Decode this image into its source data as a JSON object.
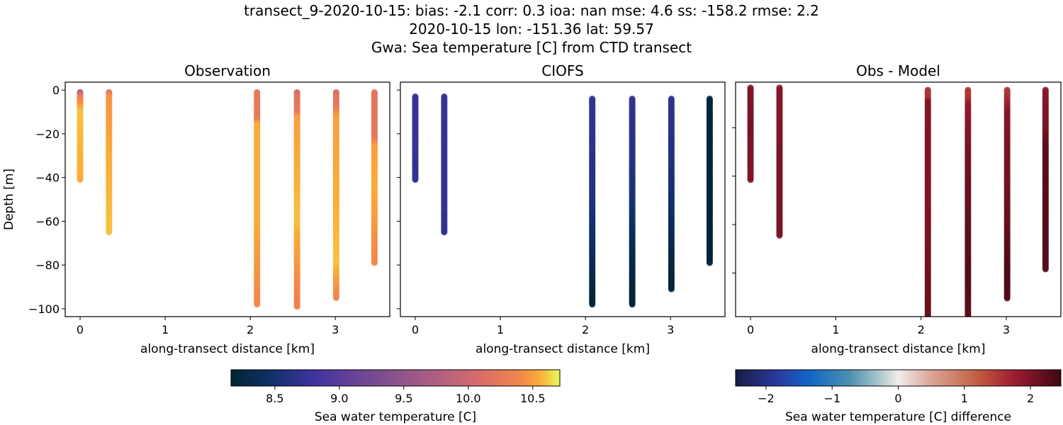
{
  "title_lines": [
    "transect_9-2020-10-15: bias: -2.1  corr: 0.3  ioa: nan  mse: 4.6  ss: -158.2  rmse: 2.2",
    "2020-10-15 lon: -151.36 lat: 59.57",
    "Gwa: Sea temperature [C] from CTD transect"
  ],
  "chart_data": [
    {
      "type": "scatter",
      "title": "Observation",
      "xlabel": "along-transect distance [km]",
      "ylabel": "Depth [m]",
      "xlim": [
        -0.175,
        3.64
      ],
      "ylim": [
        3.6,
        -103.6
      ],
      "xticks": [
        0,
        1,
        2,
        3
      ],
      "yticks": [
        0,
        -20,
        -40,
        -60,
        -80,
        -100
      ],
      "ytick_labels_shown": true,
      "colormap": "thermal",
      "profiles": [
        {
          "x": 0.0,
          "depth": [
            -1,
            -41
          ],
          "values": [
            [
              -1,
              9.6
            ],
            [
              -3,
              10.3
            ],
            [
              -10,
              10.6
            ],
            [
              -41,
              10.55
            ]
          ]
        },
        {
          "x": 0.34,
          "depth": [
            -1,
            -65
          ],
          "values": [
            [
              -1,
              10.1
            ],
            [
              -3,
              10.45
            ],
            [
              -30,
              10.55
            ],
            [
              -65,
              10.6
            ]
          ]
        },
        {
          "x": 2.08,
          "depth": [
            -1,
            -98
          ],
          "values": [
            [
              -1,
              10.25
            ],
            [
              -13,
              10.25
            ],
            [
              -16,
              10.55
            ],
            [
              -60,
              10.55
            ],
            [
              -98,
              10.4
            ]
          ]
        },
        {
          "x": 2.55,
          "depth": [
            -1,
            -99
          ],
          "values": [
            [
              -1,
              10.0
            ],
            [
              -3,
              10.2
            ],
            [
              -10,
              10.25
            ],
            [
              -13,
              10.5
            ],
            [
              -60,
              10.6
            ],
            [
              -99,
              10.35
            ]
          ]
        },
        {
          "x": 3.01,
          "depth": [
            -1,
            -95
          ],
          "values": [
            [
              -1,
              10.05
            ],
            [
              -3,
              10.2
            ],
            [
              -8,
              10.25
            ],
            [
              -12,
              10.5
            ],
            [
              -80,
              10.6
            ],
            [
              -95,
              10.4
            ]
          ]
        },
        {
          "x": 3.46,
          "depth": [
            -1,
            -79
          ],
          "values": [
            [
              -1,
              10.2
            ],
            [
              -22,
              10.25
            ],
            [
              -26,
              10.5
            ],
            [
              -45,
              10.55
            ],
            [
              -79,
              10.4
            ]
          ]
        }
      ]
    },
    {
      "type": "scatter",
      "title": "CIOFS",
      "xlabel": "along-transect distance [km]",
      "xlim": [
        -0.175,
        3.64
      ],
      "ylim": [
        3.6,
        -103.6
      ],
      "xticks": [
        0,
        1,
        2,
        3
      ],
      "yticks": [
        0,
        -20,
        -40,
        -60,
        -80,
        -100
      ],
      "ytick_labels_shown": false,
      "colormap": "thermal",
      "profiles": [
        {
          "x": 0.0,
          "depth": [
            -3,
            -41
          ],
          "values": [
            [
              -3,
              8.75
            ],
            [
              -41,
              8.72
            ]
          ]
        },
        {
          "x": 0.34,
          "depth": [
            -3,
            -65
          ],
          "values": [
            [
              -3,
              8.75
            ],
            [
              -65,
              8.7
            ]
          ]
        },
        {
          "x": 2.08,
          "depth": [
            -4,
            -98
          ],
          "values": [
            [
              -4,
              8.72
            ],
            [
              -50,
              8.6
            ],
            [
              -75,
              8.4
            ],
            [
              -98,
              8.2
            ]
          ]
        },
        {
          "x": 2.55,
          "depth": [
            -4,
            -98
          ],
          "values": [
            [
              -4,
              8.72
            ],
            [
              -50,
              8.55
            ],
            [
              -75,
              8.3
            ],
            [
              -98,
              8.18
            ]
          ]
        },
        {
          "x": 3.01,
          "depth": [
            -4,
            -91
          ],
          "values": [
            [
              -4,
              8.72
            ],
            [
              -50,
              8.5
            ],
            [
              -75,
              8.28
            ],
            [
              -91,
              8.2
            ]
          ]
        },
        {
          "x": 3.46,
          "depth": [
            -4,
            -79
          ],
          "values": [
            [
              -4,
              8.22
            ],
            [
              -79,
              8.18
            ]
          ]
        }
      ]
    },
    {
      "type": "scatter",
      "title": "Obs - Model",
      "xlabel": "along-transect distance [km]",
      "xlim": [
        -0.175,
        3.64
      ],
      "ylim": [
        -1.2,
        -98
      ],
      "xticks": [
        0,
        1,
        2,
        3
      ],
      "yticks": [
        -20,
        -40,
        -60,
        -80
      ],
      "ytick_labels_shown": false,
      "colormap": "balance",
      "profiles": [
        {
          "x": 0.0,
          "depth": [
            -3.5,
            -41.8
          ],
          "values": [
            [
              -3.5,
              1.95
            ],
            [
              -20,
              2.05
            ],
            [
              -41.8,
              1.95
            ]
          ]
        },
        {
          "x": 0.34,
          "depth": [
            -3.5,
            -64.6
          ],
          "values": [
            [
              -3.5,
              1.9
            ],
            [
              -30,
              2.0
            ],
            [
              -64.6,
              2.0
            ]
          ]
        },
        {
          "x": 2.08,
          "depth": [
            -4.4,
            -98
          ],
          "values": [
            [
              -4.4,
              1.55
            ],
            [
              -8,
              1.55
            ],
            [
              -10,
              1.95
            ],
            [
              -60,
              2.0
            ],
            [
              -98,
              2.15
            ]
          ]
        },
        {
          "x": 2.55,
          "depth": [
            -4.4,
            -98
          ],
          "values": [
            [
              -4.4,
              1.5
            ],
            [
              -8,
              1.55
            ],
            [
              -12,
              1.85
            ],
            [
              -30,
              2.05
            ],
            [
              -80,
              2.3
            ],
            [
              -98,
              2.25
            ]
          ]
        },
        {
          "x": 3.01,
          "depth": [
            -4.4,
            -90.6
          ],
          "values": [
            [
              -4.4,
              1.5
            ],
            [
              -8,
              1.6
            ],
            [
              -15,
              1.95
            ],
            [
              -50,
              2.1
            ],
            [
              -80,
              2.35
            ],
            [
              -90.6,
              2.3
            ]
          ]
        },
        {
          "x": 3.46,
          "depth": [
            -4.4,
            -78.4
          ],
          "values": [
            [
              -4.4,
              1.9
            ],
            [
              -20,
              2.0
            ],
            [
              -28,
              2.25
            ],
            [
              -78.4,
              2.3
            ]
          ]
        }
      ]
    }
  ],
  "colorbars": [
    {
      "label": "Sea water temperature [C]",
      "range": [
        8.16,
        10.71
      ],
      "ticks": [
        "8.5",
        "9.0",
        "9.5",
        "10.0",
        "10.5"
      ],
      "colormap": "thermal"
    },
    {
      "label": "Sea water temperature [C] difference",
      "range": [
        -2.46,
        2.46
      ],
      "ticks": [
        "−2",
        "−1",
        "0",
        "1",
        "2"
      ],
      "colormap": "balance"
    }
  ]
}
